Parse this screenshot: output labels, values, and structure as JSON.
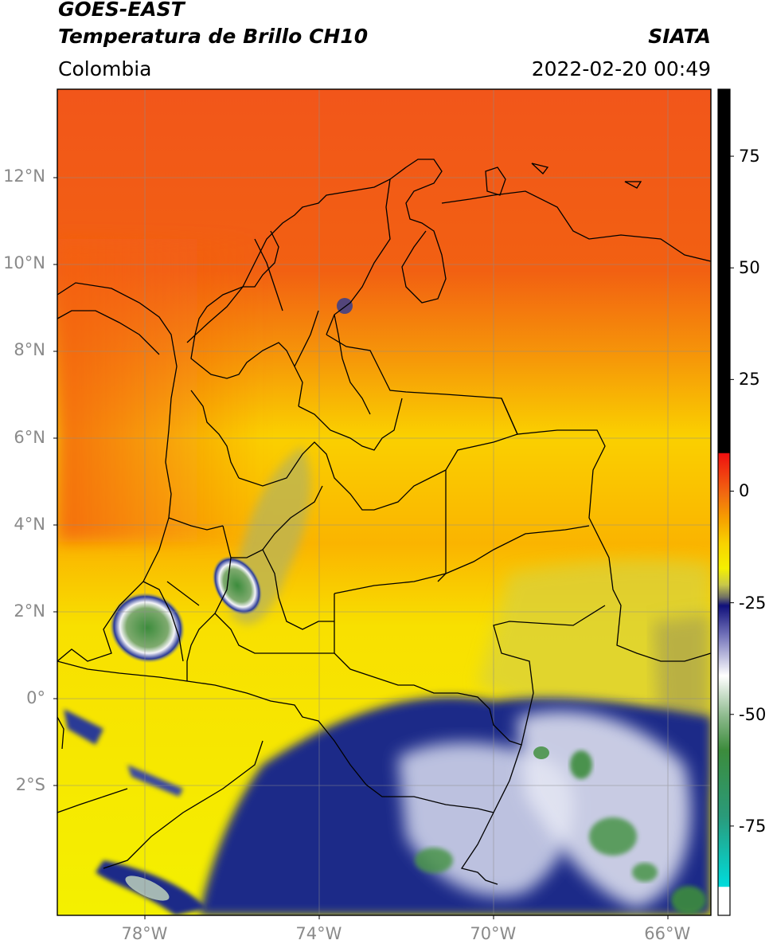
{
  "header": {
    "satellite": "GOES-EAST",
    "product": "Temperatura de Brillo CH10",
    "agency": "SIATA",
    "region": "Colombia",
    "datetime": "2022-02-20 00:49"
  },
  "map": {
    "lon_range": [
      -80,
      -65
    ],
    "lat_range": [
      -5,
      14
    ],
    "lat_ticks": [
      {
        "value": 12,
        "label": "12°N"
      },
      {
        "value": 10,
        "label": "10°N"
      },
      {
        "value": 8,
        "label": "8°N"
      },
      {
        "value": 6,
        "label": "6°N"
      },
      {
        "value": 4,
        "label": "4°N"
      },
      {
        "value": 2,
        "label": "2°N"
      },
      {
        "value": 0,
        "label": "0°"
      },
      {
        "value": -2,
        "label": "2°S"
      }
    ],
    "lon_ticks": [
      {
        "value": -78,
        "label": "78°W"
      },
      {
        "value": -74,
        "label": "74°W"
      },
      {
        "value": -70,
        "label": "70°W"
      },
      {
        "value": -66,
        "label": "66°W"
      }
    ],
    "gridlines": true,
    "colors": {
      "warm": "#f05a10",
      "mid": "#fab400",
      "cool": "#f0f000",
      "cloud_blue": "#1a2a86",
      "cloud_white": "#f0f0f5",
      "cloud_green": "#3c8c3c",
      "border": "#000000"
    }
  },
  "colorbar": {
    "range": [
      -95,
      90
    ],
    "ticks": [
      {
        "value": 75,
        "label": "75"
      },
      {
        "value": 50,
        "label": "50"
      },
      {
        "value": 25,
        "label": "25"
      },
      {
        "value": 0,
        "label": "0"
      },
      {
        "value": -25,
        "label": "-25"
      },
      {
        "value": -50,
        "label": "-50"
      },
      {
        "value": -75,
        "label": "-75"
      }
    ]
  }
}
